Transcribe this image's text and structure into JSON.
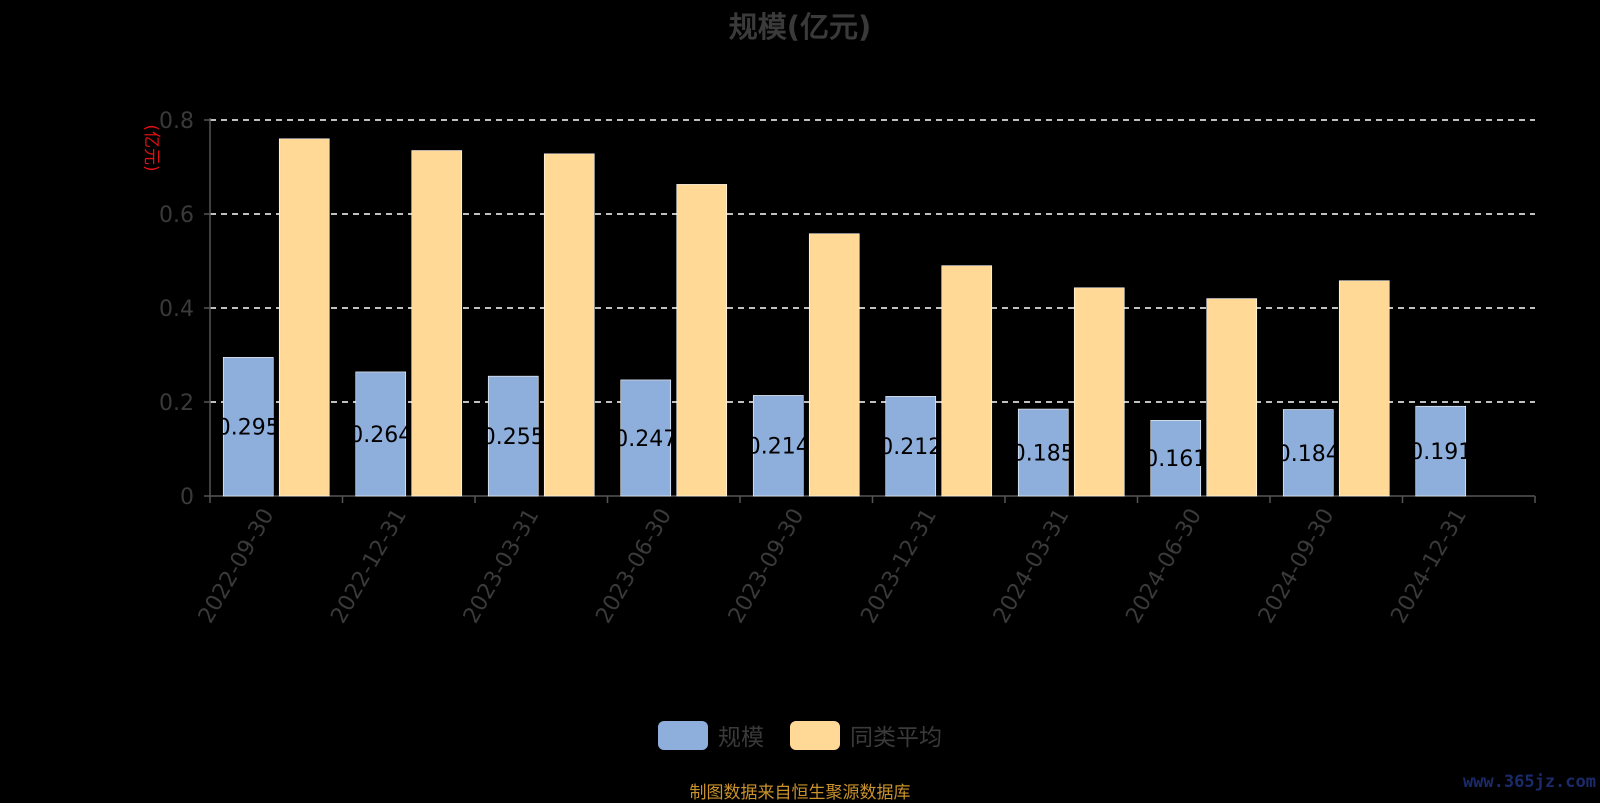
{
  "page": {
    "watermark": "www.365jz.com"
  },
  "chart_data": {
    "type": "bar",
    "title": "规模(亿元)",
    "ylabel": "(亿元)",
    "xlabel": "",
    "ylim": [
      0,
      0.8
    ],
    "yticks": [
      "0",
      "0.2",
      "0.4",
      "0.6",
      "0.8"
    ],
    "grid": "dashed-horizontal",
    "legend_position": "bottom",
    "categories": [
      "2022-09-30",
      "2022-12-31",
      "2023-03-31",
      "2023-06-30",
      "2023-09-30",
      "2023-12-31",
      "2024-03-31",
      "2024-06-30",
      "2024-09-30",
      "2024-12-31"
    ],
    "series": [
      {
        "name": "规模",
        "color": "#8eaedb",
        "values": [
          0.295,
          0.264,
          0.255,
          0.247,
          0.214,
          0.212,
          0.185,
          0.161,
          0.184,
          0.191
        ],
        "labels": [
          "0.295",
          "0.264",
          "0.255",
          "0.247",
          "0.214",
          "0.212",
          "0.185",
          "0.161",
          "0.184",
          "0.191"
        ]
      },
      {
        "name": "同类平均",
        "color": "#ffd995",
        "values": [
          0.76,
          0.735,
          0.728,
          0.663,
          0.558,
          0.49,
          0.443,
          0.42,
          0.458,
          null
        ]
      }
    ],
    "source": "制图数据来自恒生聚源数据库"
  }
}
